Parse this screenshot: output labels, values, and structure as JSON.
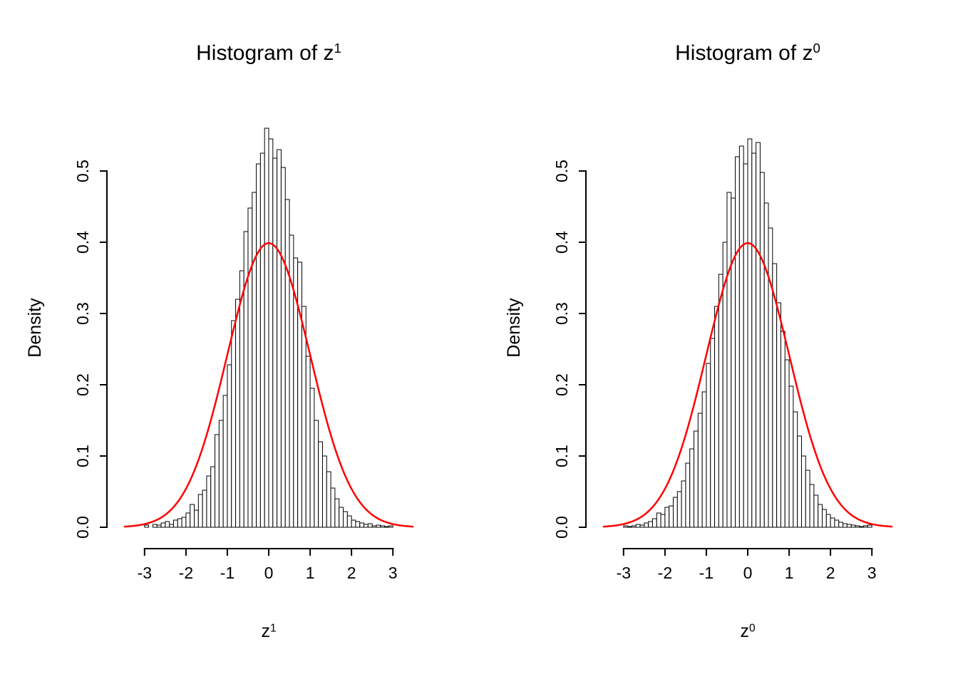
{
  "background": "#ffffff",
  "chart_data": [
    {
      "type": "histogram",
      "title_base": "Histogram of z",
      "title_sup": "1",
      "xlabel_base": "z",
      "xlabel_sup": "1",
      "ylabel": "Density",
      "xlim": [
        -3.6,
        3.6
      ],
      "ylim": [
        0,
        0.56
      ],
      "x_ticks": [
        -3,
        -2,
        -1,
        0,
        1,
        2,
        3
      ],
      "y_ticks": [
        "0.0",
        "0.1",
        "0.2",
        "0.3",
        "0.4",
        "0.5"
      ],
      "grid": false,
      "legend": "none",
      "bar_color": "#ffffff",
      "bar_border": "#000000",
      "curve": {
        "label": "standard-normal-density",
        "mean": 0,
        "sd": 1,
        "peak": 0.3989,
        "color": "#ff0000"
      },
      "bins": {
        "start": -3.0,
        "width": 0.1
      },
      "densities": [
        0.003,
        0.0,
        0.004,
        0.003,
        0.006,
        0.008,
        0.004,
        0.01,
        0.012,
        0.014,
        0.02,
        0.032,
        0.024,
        0.046,
        0.052,
        0.072,
        0.085,
        0.13,
        0.15,
        0.185,
        0.228,
        0.29,
        0.32,
        0.36,
        0.415,
        0.448,
        0.47,
        0.51,
        0.525,
        0.56,
        0.545,
        0.518,
        0.53,
        0.505,
        0.46,
        0.41,
        0.378,
        0.372,
        0.31,
        0.24,
        0.195,
        0.15,
        0.12,
        0.1,
        0.078,
        0.055,
        0.04,
        0.028,
        0.022,
        0.016,
        0.01,
        0.008,
        0.006,
        0.004,
        0.005,
        0.002,
        0.003,
        0.002,
        0.001,
        0.002
      ]
    },
    {
      "type": "histogram",
      "title_base": "Histogram of z",
      "title_sup": "0",
      "xlabel_base": "z",
      "xlabel_sup": "0",
      "ylabel": "Density",
      "xlim": [
        -3.6,
        3.6
      ],
      "ylim": [
        0,
        0.56
      ],
      "x_ticks": [
        -3,
        -2,
        -1,
        0,
        1,
        2,
        3
      ],
      "y_ticks": [
        "0.0",
        "0.1",
        "0.2",
        "0.3",
        "0.4",
        "0.5"
      ],
      "grid": false,
      "legend": "none",
      "bar_color": "#ffffff",
      "bar_border": "#000000",
      "curve": {
        "label": "standard-normal-density",
        "mean": 0,
        "sd": 1,
        "peak": 0.3989,
        "color": "#ff0000"
      },
      "bins": {
        "start": -3.0,
        "width": 0.1
      },
      "densities": [
        0.002,
        0.001,
        0.002,
        0.004,
        0.003,
        0.006,
        0.008,
        0.012,
        0.02,
        0.018,
        0.028,
        0.03,
        0.042,
        0.05,
        0.065,
        0.09,
        0.11,
        0.135,
        0.16,
        0.19,
        0.23,
        0.265,
        0.31,
        0.355,
        0.4,
        0.47,
        0.462,
        0.52,
        0.535,
        0.51,
        0.545,
        0.525,
        0.54,
        0.498,
        0.455,
        0.42,
        0.37,
        0.315,
        0.275,
        0.235,
        0.198,
        0.162,
        0.128,
        0.1,
        0.08,
        0.06,
        0.045,
        0.032,
        0.025,
        0.018,
        0.013,
        0.01,
        0.007,
        0.005,
        0.004,
        0.003,
        0.002,
        0.001,
        0.002,
        0.003
      ]
    }
  ]
}
